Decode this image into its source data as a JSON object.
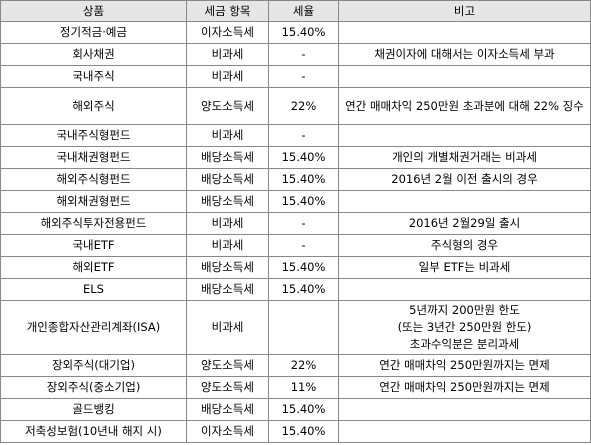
{
  "headers": [
    "상품",
    "세금 항목",
    "세율",
    "비고"
  ],
  "rows": [
    {
      "product": "정기적금·예금",
      "tax": "이자소득세",
      "rate": "15.40%",
      "note": ""
    },
    {
      "product": "회사채권",
      "tax": "비과세",
      "rate": "-",
      "note": "채권이자에 대해서는 이자소득세 부과"
    },
    {
      "product": "국내주식",
      "tax": "비과세",
      "rate": "-",
      "note": ""
    },
    {
      "product": "해외주식",
      "tax": "양도소득세",
      "rate": "22%",
      "note": "연간 매매차익 250만원 초과분에 대해 22% 징수"
    },
    {
      "product": "국내주식형펀드",
      "tax": "비과세",
      "rate": "-",
      "note": ""
    },
    {
      "product": "국내채권형펀드",
      "tax": "배당소득세",
      "rate": "15.40%",
      "note": "개인의 개별채권거래는 비과세"
    },
    {
      "product": "해외주식형펀드",
      "tax": "배당소득세",
      "rate": "15.40%",
      "note": "2016년 2월 이전 출시의 경우"
    },
    {
      "product": "해외채권형펀드",
      "tax": "배당소득세",
      "rate": "15.40%",
      "note": ""
    },
    {
      "product": "해외주식투자전용펀드",
      "tax": "비과세",
      "rate": "-",
      "note": "2016년 2월29일 출시"
    },
    {
      "product": "국내ETF",
      "tax": "비과세",
      "rate": "-",
      "note": "주식형의 경우"
    },
    {
      "product": "해외ETF",
      "tax": "배당소득세",
      "rate": "15.40%",
      "note": "일부 ETF는 비과세"
    },
    {
      "product": "ELS",
      "tax": "배당소득세",
      "rate": "15.40%",
      "note": ""
    },
    {
      "product": "개인종합자산관리계좌(ISA)",
      "tax": "비과세",
      "rate": "",
      "note_lines": [
        "5년까지 200만원 한도",
        "(또는 3년간 250만원 한도)",
        "초과수익분은 분리과세"
      ]
    },
    {
      "product": "장외주식(대기업)",
      "tax": "양도소득세",
      "rate": "22%",
      "note": "연간 매매차익 250만원까지는 면제"
    },
    {
      "product": "장외주식(중소기업)",
      "tax": "양도소득세",
      "rate": "11%",
      "note": "연간 매매차익 250만원까지는 면제"
    },
    {
      "product": "골드뱅킹",
      "tax": "배당소득세",
      "rate": "15.40%",
      "note": ""
    },
    {
      "product": "저축성보험(10년내 해지 시)",
      "tax": "이자소득세",
      "rate": "15.40%",
      "note": ""
    }
  ]
}
